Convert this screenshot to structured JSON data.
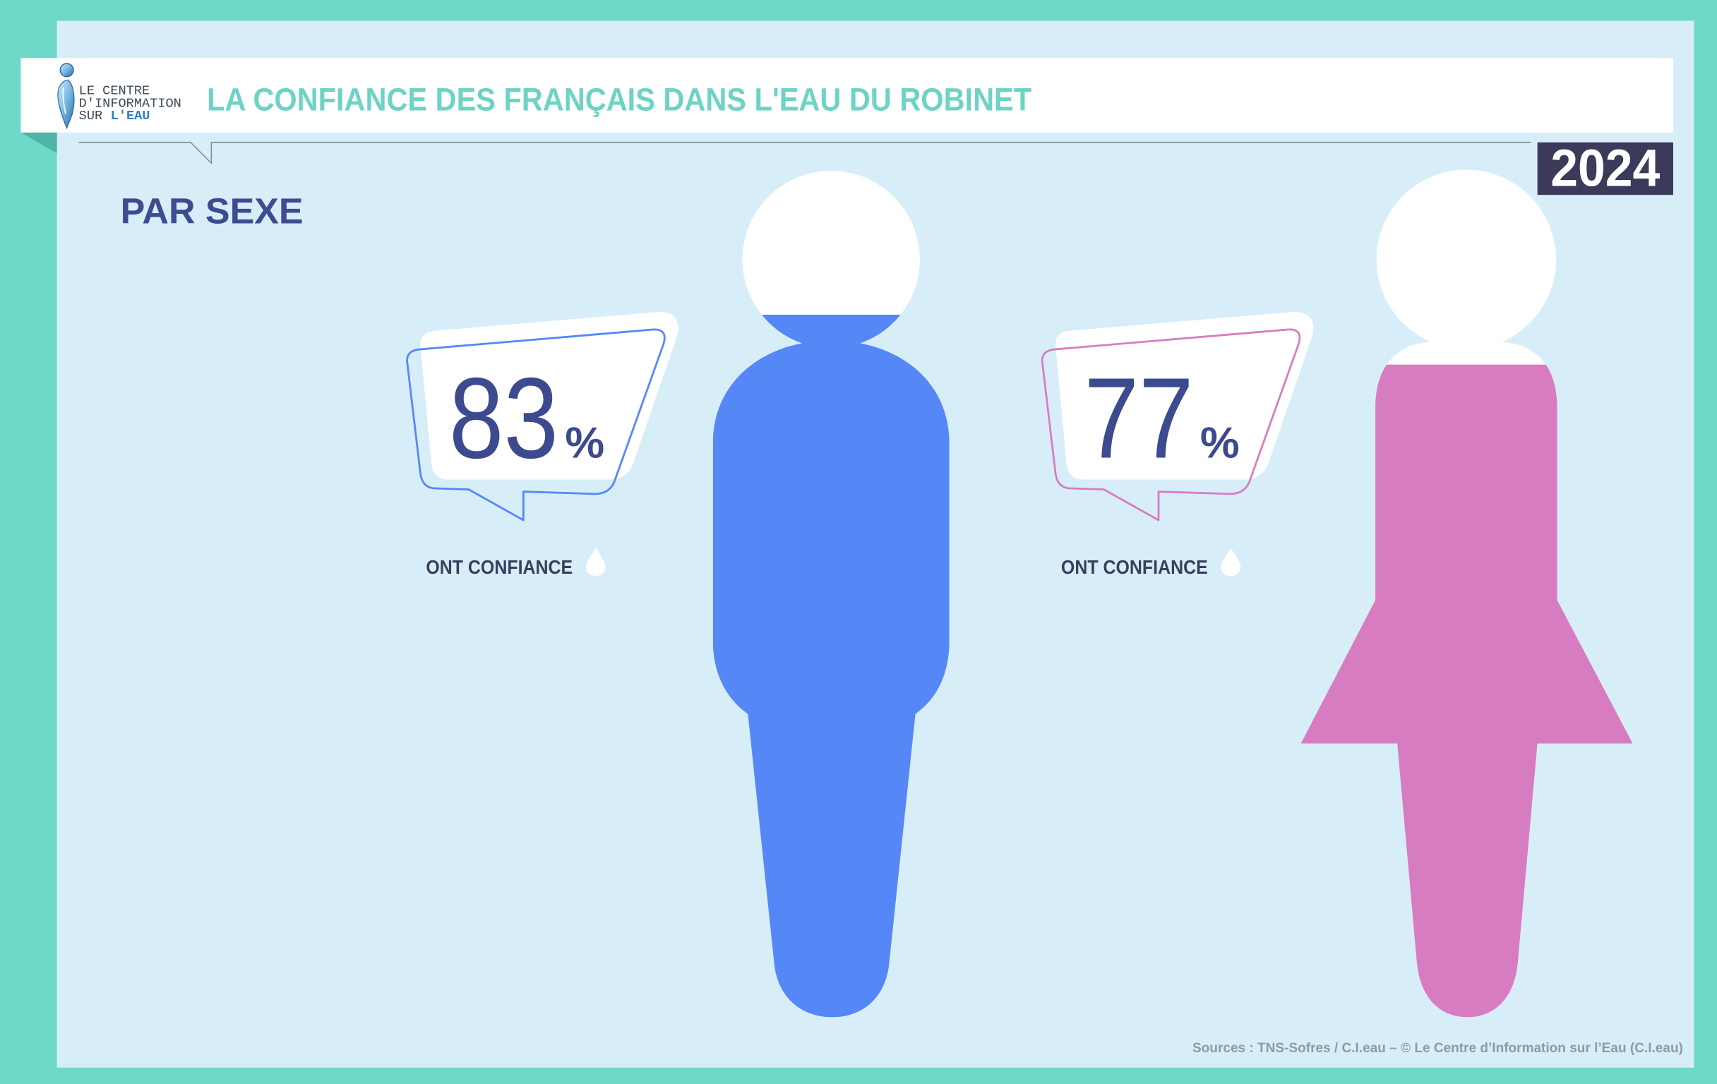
{
  "colors": {
    "frame": "#6fd9c9",
    "panel": "#d7eef9",
    "ribbon_fold": "#4fb5a6",
    "title": "#6dd3c5",
    "subtitle": "#3d4b91",
    "value_text": "#3d4a8f",
    "label_text": "#3a3e5e",
    "year_box": "#3b3a5a",
    "sources_text": "#8c9aa9",
    "logo_text": "#3c4a5a",
    "logo_accent": "#2e7fc9"
  },
  "header": {
    "logo": {
      "icon": "cieau-logo-drop-icon",
      "line1": "LE CENTRE",
      "line2": "D'INFORMATION",
      "line3": "SUR",
      "line3_accent": "L'EAU"
    },
    "title": "LA CONFIANCE DES FRANÇAIS DANS L'EAU DU ROBINET",
    "year": "2024"
  },
  "subtitle": "PAR SEXE",
  "chart_data": {
    "type": "bar",
    "icons": [
      "man-icon",
      "woman-icon"
    ],
    "values": [
      83,
      77
    ],
    "unit": "%",
    "value_label": "ONT CONFIANCE",
    "label_icon": "water-drop-icon",
    "ylim": [
      0,
      100
    ],
    "colors": [
      "#5588f6",
      "#d87cc1"
    ]
  },
  "footer": {
    "sources": "Sources : TNS-Sofres / C.I.eau – © Le Centre d’Information sur l’Eau (C.I.eau)"
  }
}
